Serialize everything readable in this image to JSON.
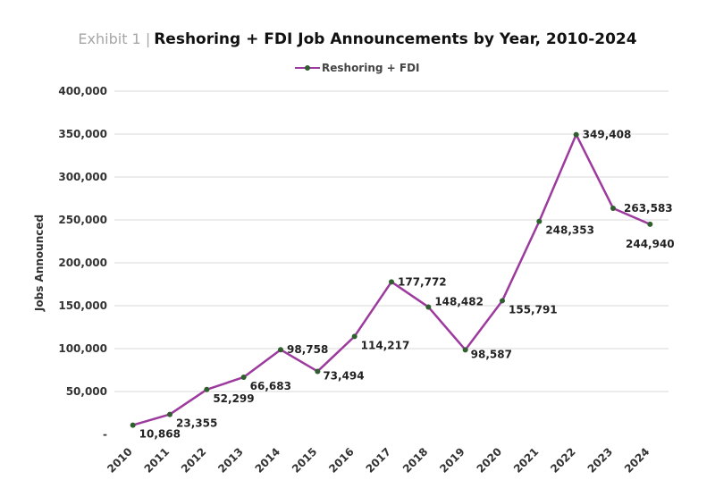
{
  "header": {
    "exhibit": "Exhibit 1 |",
    "title": "Reshoring + FDI Job Announcements by Year, 2010-2024"
  },
  "chart_data": {
    "type": "line",
    "title": "Reshoring + FDI Job Announcements by Year, 2010-2024",
    "xlabel": "",
    "ylabel": "Jobs Announced",
    "ylim": [
      0,
      400000
    ],
    "y_ticks": [
      0,
      50000,
      100000,
      150000,
      200000,
      250000,
      300000,
      350000,
      400000
    ],
    "y_tick_labels": [
      "-",
      "50,000",
      "100,000",
      "150,000",
      "200,000",
      "250,000",
      "300,000",
      "350,000",
      "400,000"
    ],
    "grid": true,
    "legend": "top-center",
    "categories": [
      "2010",
      "2011",
      "2012",
      "2013",
      "2014",
      "2015",
      "2016",
      "2017",
      "2018",
      "2019",
      "2020",
      "2021",
      "2022",
      "2023",
      "2024"
    ],
    "series": [
      {
        "name": "Reshoring + FDI",
        "color": "#9d3a9d",
        "marker_color": "#2f5e2f",
        "values": [
          10868,
          23355,
          52299,
          66683,
          98758,
          73494,
          114217,
          177772,
          148482,
          98587,
          155791,
          248353,
          349408,
          263583,
          244940
        ],
        "value_labels": [
          "10,868",
          "23,355",
          "52,299",
          "66,683",
          "98,758",
          "73,494",
          "114,217",
          "177,772",
          "148,482",
          "98,587",
          "155,791",
          "248,353",
          "349,408",
          "263,583",
          "244,940"
        ]
      }
    ]
  }
}
